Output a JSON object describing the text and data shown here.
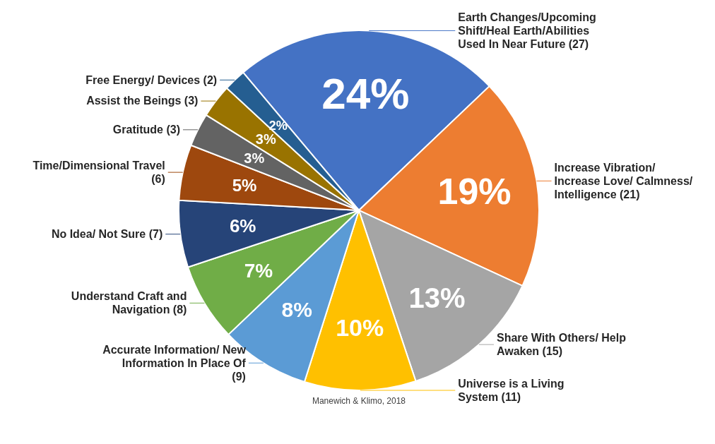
{
  "chart_data": {
    "type": "pie",
    "categories": [
      "Earth Changes/Upcoming Shift/Heal Earth/Abilities Used In Near Future (27)",
      "Increase Vibration/ Increase Love/ Calmness/ Intelligence (21)",
      "Share With Others/ Help Awaken (15)",
      "Universe is a Living System (11)",
      "Accurate Information/ New Information In Place Of (9)",
      "Understand Craft and Navigation (8)",
      "No Idea/ Not Sure (7)",
      "Time/Dimensional Travel (6)",
      "Gratitude (3)",
      "Assist the Beings (3)",
      "Free Energy/ Devices (2)"
    ],
    "values": [
      24,
      19,
      13,
      10,
      8,
      7,
      6,
      5,
      3,
      3,
      2
    ],
    "value_labels": [
      "24%",
      "19%",
      "13%",
      "10%",
      "8%",
      "7%",
      "6%",
      "5%",
      "3%",
      "3%",
      "2%"
    ],
    "colors": [
      "#4472c4",
      "#ed7d31",
      "#a5a5a5",
      "#ffc000",
      "#5b9bd5",
      "#70ad47",
      "#264478",
      "#9e480e",
      "#636363",
      "#997300",
      "#255e91"
    ],
    "annotations": [
      "Manewich & Klimo, 2018"
    ]
  }
}
